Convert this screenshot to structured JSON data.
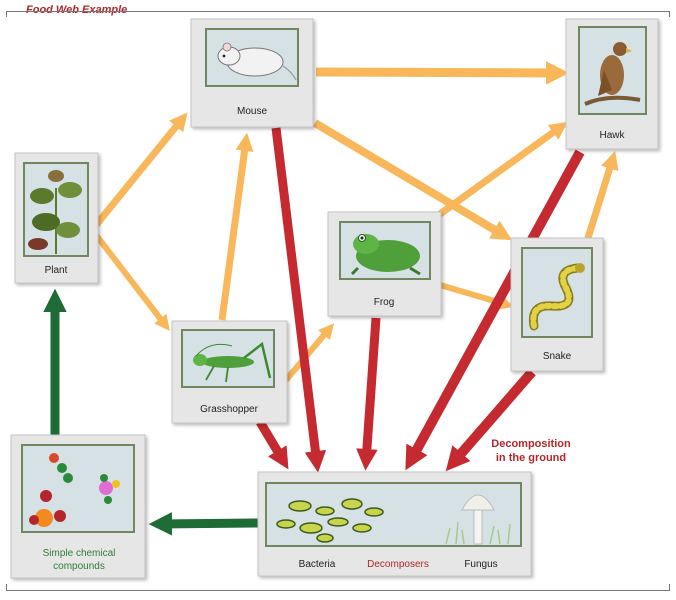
{
  "title": "Food Web Example",
  "organisms": {
    "mouse": "Mouse",
    "hawk": "Hawk",
    "plant": "Plant",
    "frog": "Frog",
    "snake": "Snake",
    "grasshopper": "Grasshopper"
  },
  "decomposers": {
    "bacteria": "Bacteria",
    "label": "Decomposers",
    "fungus": "Fungus"
  },
  "compounds": {
    "line1": "Simple chemical",
    "line2": "compounds"
  },
  "decomposition_note": {
    "line1": "Decomposition",
    "line2": "in the ground"
  },
  "colors": {
    "energy_flow": "#f8b75a",
    "decomposition_flow": "#c42a2f",
    "nutrient_flow": "#1f6b35",
    "accent_text": "#b3262b",
    "compound_text": "#2e7d3a"
  }
}
